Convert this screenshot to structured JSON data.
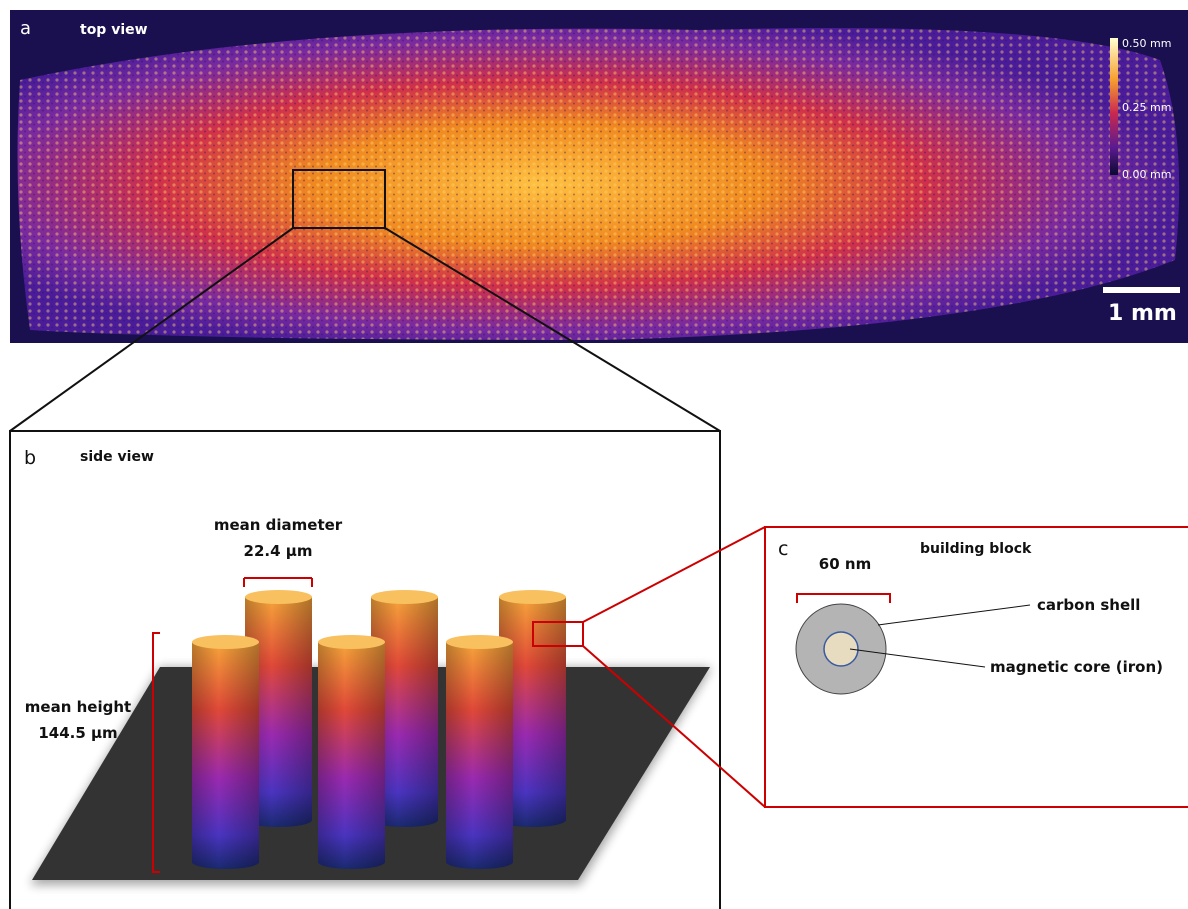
{
  "panel_a": {
    "letter": "a",
    "title": "top view",
    "colorbar": [
      "0.50 mm",
      "0.25 mm",
      "0.00 mm"
    ],
    "scale_bar": "1 mm"
  },
  "panel_b": {
    "letter": "b",
    "title": "side view",
    "diameter_label": "mean diameter",
    "diameter_value": "22.4 µm",
    "height_label": "mean height",
    "height_value": "144.5 µm"
  },
  "panel_c": {
    "letter": "c",
    "title": "building block",
    "size": "60 nm",
    "shell": "carbon shell",
    "core": "magnetic core (iron)"
  }
}
